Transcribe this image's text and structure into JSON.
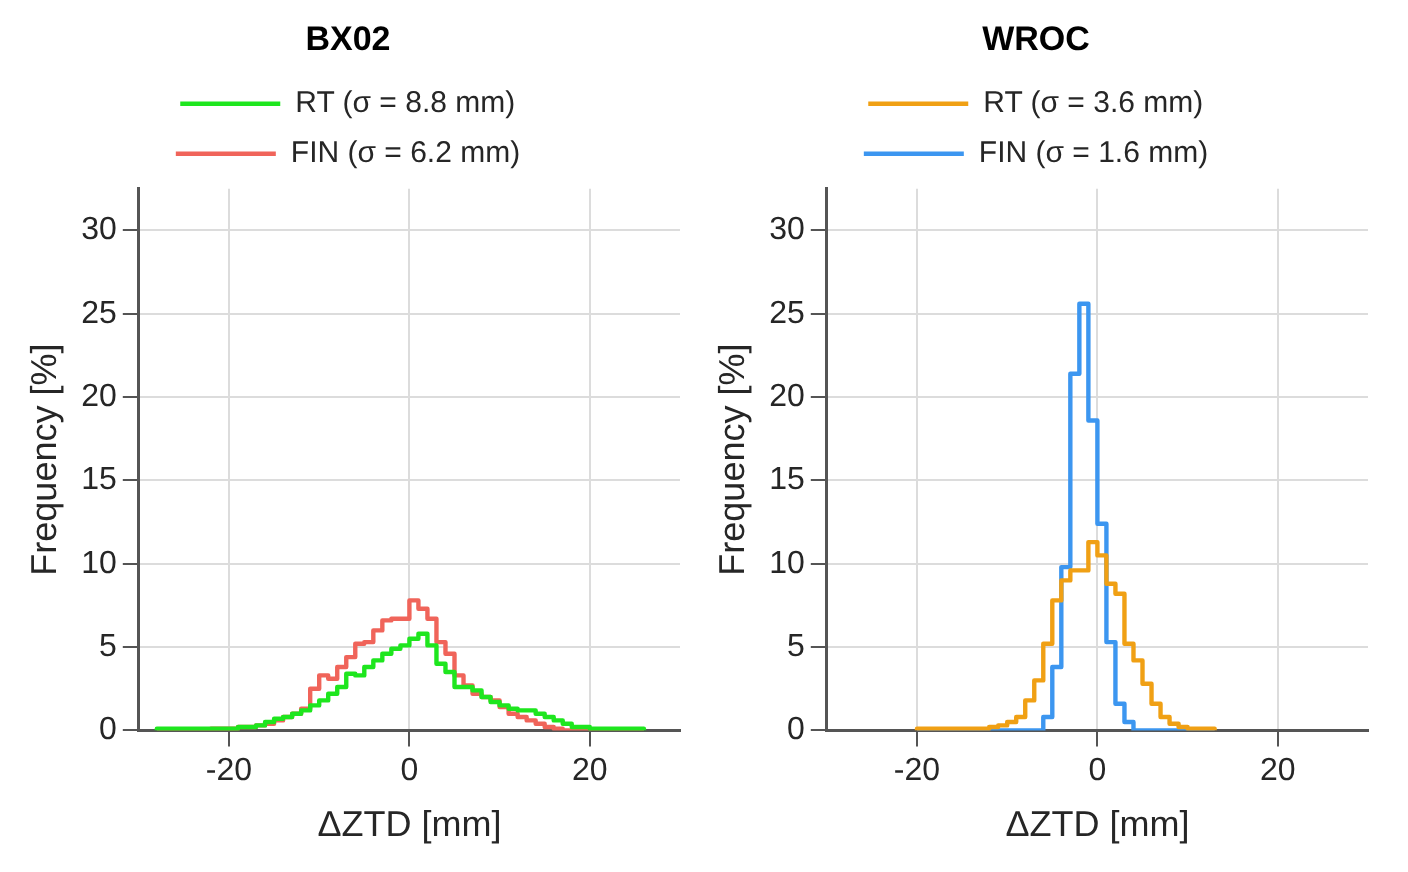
{
  "chart_data": [
    {
      "type": "histogram",
      "title": "BX02",
      "xlabel": "ΔZTD [mm]",
      "ylabel": "Frequency [%]",
      "xlim": [
        -30,
        30
      ],
      "xticks": [
        -20,
        0,
        20
      ],
      "ylim": [
        0,
        32.5
      ],
      "yticks": [
        0,
        5,
        10,
        15,
        20,
        25,
        30
      ],
      "grid": true,
      "legend": "top",
      "line_style": "solid",
      "bins": [
        -28,
        -27,
        -26,
        -25,
        -24,
        -23,
        -22,
        -21,
        -20,
        -19,
        -18,
        -17,
        -16,
        -15,
        -14,
        -13,
        -12,
        -11,
        -10,
        -9,
        -8,
        -7,
        -6,
        -5,
        -4,
        -3,
        -2,
        -1,
        0,
        1,
        2,
        3,
        4,
        5,
        6,
        7,
        8,
        9,
        10,
        11,
        12,
        13,
        14,
        15,
        16,
        17,
        18,
        19,
        20,
        21,
        22,
        23,
        24,
        25,
        26
      ],
      "series": [
        {
          "name": "RT (σ = 8.8 mm)",
          "color": "#1ee61e",
          "values": [
            0.1,
            0.1,
            0.1,
            0.1,
            0.1,
            0.1,
            0.1,
            0.1,
            0.1,
            0.2,
            0.2,
            0.3,
            0.5,
            0.7,
            0.8,
            1.0,
            1.2,
            1.5,
            1.8,
            2.2,
            2.6,
            3.4,
            3.3,
            3.8,
            4.2,
            4.6,
            4.9,
            5.1,
            5.5,
            5.8,
            5.1,
            4.0,
            3.5,
            2.6,
            2.6,
            2.4,
            2.0,
            1.7,
            1.5,
            1.3,
            1.2,
            1.2,
            1.0,
            0.8,
            0.6,
            0.4,
            0.2,
            0.2,
            0.1,
            0.1,
            0.1,
            0.1,
            0.1,
            0.1
          ]
        },
        {
          "name": "FIN (σ = 6.2 mm)",
          "color": "#f0645a",
          "values": [
            0,
            0,
            0,
            0,
            0,
            0,
            0.1,
            0.1,
            0.1,
            0.2,
            0.2,
            0.3,
            0.4,
            0.6,
            0.8,
            1.0,
            1.3,
            2.5,
            3.3,
            3.1,
            3.8,
            4.4,
            5.2,
            5.3,
            6.0,
            6.6,
            6.7,
            6.7,
            7.8,
            7.3,
            6.7,
            5.3,
            4.6,
            3.3,
            2.7,
            2.2,
            2.0,
            1.8,
            1.4,
            1.0,
            0.8,
            0.6,
            0.4,
            0.2,
            0.1,
            0,
            0,
            0,
            0,
            0,
            0,
            0,
            0,
            0
          ]
        }
      ]
    },
    {
      "type": "histogram",
      "title": "WROC",
      "xlabel": "ΔZTD [mm]",
      "ylabel": "Frequency [%]",
      "xlim": [
        -30,
        30
      ],
      "xticks": [
        -20,
        0,
        20
      ],
      "ylim": [
        0,
        32.5
      ],
      "yticks": [
        0,
        5,
        10,
        15,
        20,
        25,
        30
      ],
      "grid": true,
      "legend": "top",
      "line_style": "solid",
      "bins": [
        -20,
        -19,
        -18,
        -17,
        -16,
        -15,
        -14,
        -13,
        -12,
        -11,
        -10,
        -9,
        -8,
        -7,
        -6,
        -5,
        -4,
        -3,
        -2,
        -1,
        0,
        1,
        2,
        3,
        4,
        5,
        6,
        7,
        8,
        9,
        10,
        11,
        12,
        13
      ],
      "series": [
        {
          "name": "RT (σ = 3.6 mm)",
          "color": "#f0a014",
          "values": [
            0.1,
            0.1,
            0.1,
            0.1,
            0.1,
            0.1,
            0.1,
            0.1,
            0.2,
            0.3,
            0.5,
            0.8,
            1.8,
            3.0,
            5.2,
            7.8,
            9.0,
            9.6,
            9.6,
            11.3,
            10.5,
            8.8,
            8.2,
            5.2,
            4.2,
            2.8,
            1.6,
            0.8,
            0.4,
            0.2,
            0.1,
            0.1,
            0.1
          ]
        },
        {
          "name": "FIN (σ = 1.6 mm)",
          "color": "#3c96f0",
          "values": [
            0,
            0,
            0,
            0,
            0,
            0,
            0,
            0,
            0,
            0,
            0,
            0,
            0,
            0,
            0.8,
            3.8,
            9.8,
            21.4,
            25.6,
            18.6,
            12.4,
            5.3,
            1.6,
            0.5,
            0,
            0,
            0,
            0,
            0,
            0,
            0,
            0,
            0
          ]
        }
      ]
    }
  ]
}
